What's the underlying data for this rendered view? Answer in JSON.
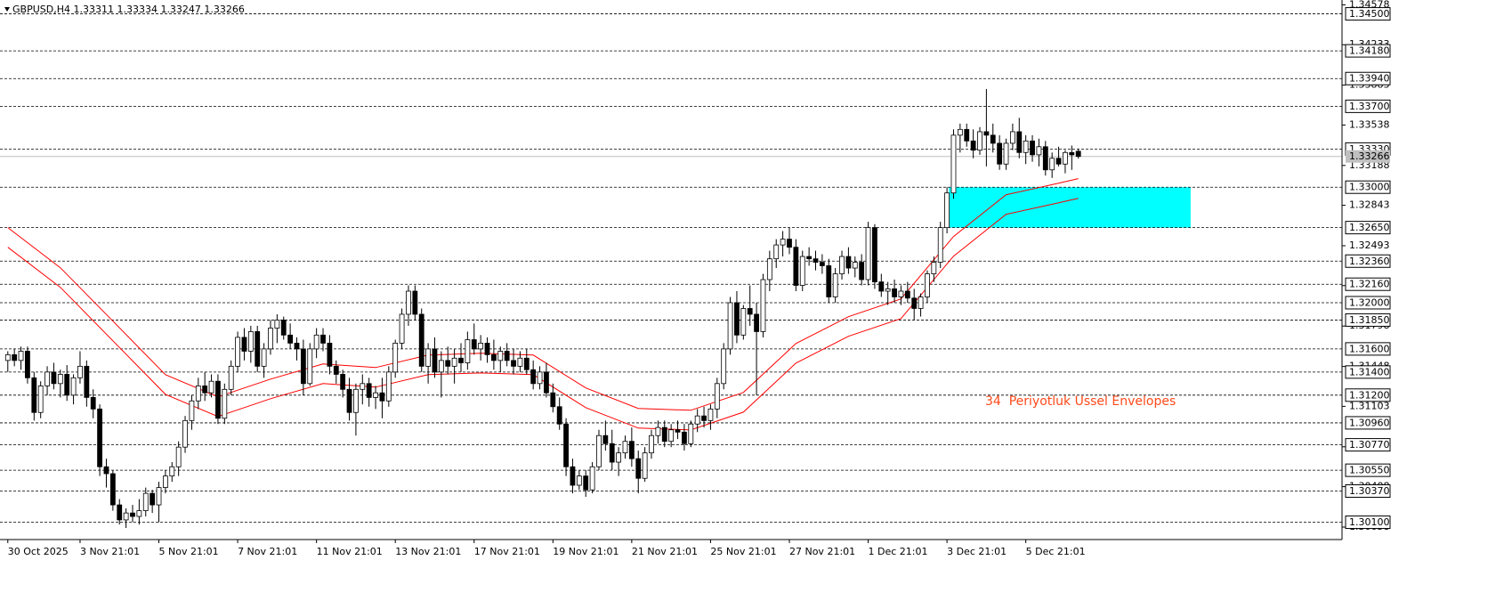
{
  "chart_data": {
    "type": "candlestick",
    "title": "GBPUSD,H4  1.33311 1.33334 1.33247 1.33266",
    "annotation": "34  Periyotluk Ussel Envelopes",
    "ylim": [
      1.2995,
      1.3462
    ],
    "xlim": [
      -1.19,
      203.15
    ],
    "yticks": [
      1.34578,
      1.34233,
      1.33883,
      1.33538,
      1.33188,
      1.32843,
      1.32493,
      1.32148,
      1.31798,
      1.31448,
      1.31103,
      1.30753,
      1.30408,
      1.30058
    ],
    "levels": [
      {
        "value": 1.345,
        "label": "1.34500"
      },
      {
        "value": 1.3418,
        "label": "1.34180"
      },
      {
        "value": 1.3394,
        "label": "1.33940"
      },
      {
        "value": 1.337,
        "label": "1.33700"
      },
      {
        "value": 1.3333,
        "label": "1.33330"
      },
      {
        "value": 1.33,
        "label": "1.33000"
      },
      {
        "value": 1.3265,
        "label": "1.32650"
      },
      {
        "value": 1.3236,
        "label": "1.32360"
      },
      {
        "value": 1.3216,
        "label": "1.32160"
      },
      {
        "value": 1.32,
        "label": "1.32000"
      },
      {
        "value": 1.3185,
        "label": "1.31850"
      },
      {
        "value": 1.316,
        "label": "1.31600"
      },
      {
        "value": 1.314,
        "label": "1.31400"
      },
      {
        "value": 1.312,
        "label": "1.31200"
      },
      {
        "value": 1.3096,
        "label": "1.30960"
      },
      {
        "value": 1.3077,
        "label": "1.30770"
      },
      {
        "value": 1.3055,
        "label": "1.30550"
      },
      {
        "value": 1.3037,
        "label": "1.30370"
      },
      {
        "value": 1.301,
        "label": "1.30100"
      }
    ],
    "current_price": 1.33266,
    "xticks": [
      {
        "value": 0,
        "label": "30 Oct 2025"
      },
      {
        "value": 11,
        "label": "3 Nov 21:01"
      },
      {
        "value": 23,
        "label": "5 Nov 21:01"
      },
      {
        "value": 35,
        "label": "7 Nov 21:01"
      },
      {
        "value": 47,
        "label": "11 Nov 21:01"
      },
      {
        "value": 59,
        "label": "13 Nov 21:01"
      },
      {
        "value": 71,
        "label": "17 Nov 21:01"
      },
      {
        "value": 83,
        "label": "19 Nov 21:01"
      },
      {
        "value": 95,
        "label": "21 Nov 21:01"
      },
      {
        "value": 107,
        "label": "25 Nov 21:01"
      },
      {
        "value": 119,
        "label": "27 Nov 21:01"
      },
      {
        "value": 131,
        "label": "1 Dec 21:01"
      },
      {
        "value": 143,
        "label": "3 Dec 21:01"
      },
      {
        "value": 155,
        "label": "5 Dec 21:01"
      }
    ],
    "zone": {
      "color": "#00ffff",
      "x": [
        143.3,
        180.1
      ],
      "y": [
        1.3265,
        1.33
      ]
    },
    "envelopes": [
      {
        "color": "#ff0000",
        "x": [
          0,
          8,
          16,
          24,
          32,
          40,
          48,
          56,
          64,
          72,
          80,
          88,
          96,
          104,
          112,
          120,
          128,
          136,
          144,
          152,
          160,
          163
        ],
        "values": [
          1.3265,
          1.32303,
          1.3184,
          1.31377,
          1.31185,
          1.31339,
          1.3147,
          1.31439,
          1.31547,
          1.31562,
          1.31547,
          1.31262,
          1.31085,
          1.31069,
          1.31223,
          1.31647,
          1.31879,
          1.32033,
          1.32573,
          1.32935,
          1.33035,
          1.33074
        ]
      },
      {
        "color": "#ff0000",
        "x": [
          0,
          8,
          16,
          24,
          32,
          40,
          48,
          56,
          64,
          72,
          80,
          88,
          96,
          104,
          112,
          120,
          128,
          136,
          144,
          152,
          160,
          163
        ],
        "values": [
          1.3248,
          1.32133,
          1.3167,
          1.31207,
          1.31015,
          1.31169,
          1.313,
          1.31269,
          1.31377,
          1.31392,
          1.31377,
          1.31092,
          1.30915,
          1.30899,
          1.31053,
          1.31477,
          1.31709,
          1.31863,
          1.32403,
          1.32765,
          1.32865,
          1.32904
        ]
      }
    ],
    "candles": [
      [
        1.315,
        1.3158,
        1.314,
        1.3155
      ],
      [
        1.3155,
        1.316,
        1.3145,
        1.315
      ],
      [
        1.315,
        1.3162,
        1.3142,
        1.3158
      ],
      [
        1.3158,
        1.3162,
        1.313,
        1.3135
      ],
      [
        1.3135,
        1.314,
        1.3098,
        1.3105
      ],
      [
        1.3105,
        1.3132,
        1.31,
        1.3128
      ],
      [
        1.3128,
        1.3145,
        1.312,
        1.314
      ],
      [
        1.314,
        1.3148,
        1.3125,
        1.313
      ],
      [
        1.313,
        1.3142,
        1.3118,
        1.3138
      ],
      [
        1.3138,
        1.3146,
        1.3115,
        1.312
      ],
      [
        1.312,
        1.3138,
        1.3112,
        1.3135
      ],
      [
        1.3135,
        1.3158,
        1.313,
        1.3145
      ],
      [
        1.3145,
        1.315,
        1.311,
        1.3118
      ],
      [
        1.3118,
        1.3125,
        1.31,
        1.3108
      ],
      [
        1.3108,
        1.3112,
        1.305,
        1.3058
      ],
      [
        1.3058,
        1.3065,
        1.304,
        1.3052
      ],
      [
        1.3052,
        1.3055,
        1.302,
        1.3025
      ],
      [
        1.3025,
        1.303,
        1.3008,
        1.3012
      ],
      [
        1.3012,
        1.3022,
        1.3005,
        1.3018
      ],
      [
        1.3018,
        1.3025,
        1.301,
        1.3015
      ],
      [
        1.3015,
        1.303,
        1.3008,
        1.302
      ],
      [
        1.302,
        1.304,
        1.3015,
        1.3035
      ],
      [
        1.3035,
        1.3038,
        1.3018,
        1.3025
      ],
      [
        1.3025,
        1.3045,
        1.301,
        1.304
      ],
      [
        1.304,
        1.3055,
        1.3035,
        1.305
      ],
      [
        1.305,
        1.3062,
        1.3045,
        1.3058
      ],
      [
        1.3058,
        1.308,
        1.305,
        1.3075
      ],
      [
        1.3075,
        1.3102,
        1.307,
        1.3098
      ],
      [
        1.3098,
        1.312,
        1.309,
        1.3115
      ],
      [
        1.3115,
        1.3135,
        1.3108,
        1.3128
      ],
      [
        1.3128,
        1.314,
        1.3115,
        1.3122
      ],
      [
        1.3122,
        1.3138,
        1.3118,
        1.3132
      ],
      [
        1.3132,
        1.3138,
        1.3095,
        1.31
      ],
      [
        1.31,
        1.313,
        1.3095,
        1.3125
      ],
      [
        1.3125,
        1.315,
        1.312,
        1.3145
      ],
      [
        1.3145,
        1.3175,
        1.314,
        1.317
      ],
      [
        1.317,
        1.3178,
        1.315,
        1.3158
      ],
      [
        1.3158,
        1.318,
        1.3148,
        1.3175
      ],
      [
        1.3175,
        1.318,
        1.314,
        1.3145
      ],
      [
        1.3145,
        1.3165,
        1.3135,
        1.316
      ],
      [
        1.316,
        1.3185,
        1.3155,
        1.3178
      ],
      [
        1.3178,
        1.319,
        1.3165,
        1.3185
      ],
      [
        1.3185,
        1.3188,
        1.3168,
        1.3172
      ],
      [
        1.3172,
        1.3182,
        1.316,
        1.3165
      ],
      [
        1.3165,
        1.317,
        1.315,
        1.316
      ],
      [
        1.316,
        1.3168,
        1.312,
        1.313
      ],
      [
        1.313,
        1.3165,
        1.3128,
        1.316
      ],
      [
        1.316,
        1.3178,
        1.3152,
        1.3172
      ],
      [
        1.3172,
        1.3178,
        1.3158,
        1.3165
      ],
      [
        1.3165,
        1.3172,
        1.3138,
        1.3145
      ],
      [
        1.3145,
        1.315,
        1.313,
        1.3138
      ],
      [
        1.3138,
        1.3142,
        1.3118,
        1.3125
      ],
      [
        1.3125,
        1.3135,
        1.3098,
        1.3105
      ],
      [
        1.3105,
        1.313,
        1.3085,
        1.3125
      ],
      [
        1.3125,
        1.3138,
        1.3112,
        1.313
      ],
      [
        1.313,
        1.3135,
        1.311,
        1.3118
      ],
      [
        1.3118,
        1.3128,
        1.3108,
        1.3122
      ],
      [
        1.3122,
        1.3135,
        1.31,
        1.3115
      ],
      [
        1.3115,
        1.3145,
        1.311,
        1.314
      ],
      [
        1.314,
        1.3168,
        1.3135,
        1.3165
      ],
      [
        1.3165,
        1.3195,
        1.316,
        1.319
      ],
      [
        1.319,
        1.3215,
        1.318,
        1.321
      ],
      [
        1.321,
        1.3215,
        1.3185,
        1.319
      ],
      [
        1.319,
        1.3195,
        1.314,
        1.3145
      ],
      [
        1.3145,
        1.3165,
        1.313,
        1.316
      ],
      [
        1.316,
        1.317,
        1.3135,
        1.314
      ],
      [
        1.314,
        1.3158,
        1.3118,
        1.315
      ],
      [
        1.315,
        1.3162,
        1.3138,
        1.3145
      ],
      [
        1.3145,
        1.316,
        1.313,
        1.3152
      ],
      [
        1.3152,
        1.3165,
        1.314,
        1.3148
      ],
      [
        1.3148,
        1.3175,
        1.3142,
        1.3168
      ],
      [
        1.3168,
        1.3182,
        1.3155,
        1.316
      ],
      [
        1.316,
        1.3172,
        1.315,
        1.3165
      ],
      [
        1.3165,
        1.317,
        1.3148,
        1.3155
      ],
      [
        1.3155,
        1.3168,
        1.3142,
        1.315
      ],
      [
        1.315,
        1.3162,
        1.314,
        1.3158
      ],
      [
        1.3158,
        1.3165,
        1.3145,
        1.315
      ],
      [
        1.315,
        1.316,
        1.3138,
        1.3145
      ],
      [
        1.3145,
        1.3158,
        1.314,
        1.3152
      ],
      [
        1.3152,
        1.316,
        1.3138,
        1.3142
      ],
      [
        1.3142,
        1.315,
        1.3125,
        1.313
      ],
      [
        1.313,
        1.3145,
        1.3125,
        1.314
      ],
      [
        1.314,
        1.3148,
        1.3118,
        1.3122
      ],
      [
        1.3122,
        1.313,
        1.3105,
        1.311
      ],
      [
        1.311,
        1.3118,
        1.309,
        1.3095
      ],
      [
        1.3095,
        1.31,
        1.305,
        1.3058
      ],
      [
        1.3058,
        1.3065,
        1.3035,
        1.3042
      ],
      [
        1.3042,
        1.3055,
        1.3038,
        1.305
      ],
      [
        1.305,
        1.3055,
        1.3032,
        1.3038
      ],
      [
        1.3038,
        1.3062,
        1.3035,
        1.3058
      ],
      [
        1.3058,
        1.309,
        1.3055,
        1.3085
      ],
      [
        1.3085,
        1.3098,
        1.3072,
        1.3078
      ],
      [
        1.3078,
        1.309,
        1.3055,
        1.3062
      ],
      [
        1.3062,
        1.3075,
        1.305,
        1.307
      ],
      [
        1.307,
        1.3085,
        1.3065,
        1.308
      ],
      [
        1.308,
        1.3092,
        1.3058,
        1.3065
      ],
      [
        1.3065,
        1.3072,
        1.3035,
        1.3048
      ],
      [
        1.3048,
        1.3075,
        1.3045,
        1.307
      ],
      [
        1.307,
        1.309,
        1.3065,
        1.3085
      ],
      [
        1.3085,
        1.3098,
        1.3078,
        1.3092
      ],
      [
        1.3092,
        1.3098,
        1.3075,
        1.308
      ],
      [
        1.308,
        1.3095,
        1.3075,
        1.309
      ],
      [
        1.309,
        1.3098,
        1.3082,
        1.3088
      ],
      [
        1.3088,
        1.3095,
        1.3072,
        1.3078
      ],
      [
        1.3078,
        1.3098,
        1.3075,
        1.3095
      ],
      [
        1.3095,
        1.3108,
        1.3088,
        1.3102
      ],
      [
        1.3102,
        1.311,
        1.3092,
        1.3098
      ],
      [
        1.3098,
        1.3112,
        1.309,
        1.3108
      ],
      [
        1.3108,
        1.3135,
        1.31,
        1.313
      ],
      [
        1.313,
        1.3165,
        1.3125,
        1.316
      ],
      [
        1.316,
        1.3205,
        1.3155,
        1.32
      ],
      [
        1.32,
        1.321,
        1.3165,
        1.3172
      ],
      [
        1.3172,
        1.3198,
        1.3168,
        1.3195
      ],
      [
        1.3195,
        1.3215,
        1.318,
        1.319
      ],
      [
        1.319,
        1.32,
        1.312,
        1.3175
      ],
      [
        1.3175,
        1.3225,
        1.317,
        1.322
      ],
      [
        1.322,
        1.3245,
        1.321,
        1.3238
      ],
      [
        1.3238,
        1.3255,
        1.323,
        1.325
      ],
      [
        1.325,
        1.3262,
        1.324,
        1.3255
      ],
      [
        1.3255,
        1.3265,
        1.3242,
        1.3248
      ],
      [
        1.3248,
        1.3255,
        1.321,
        1.3215
      ],
      [
        1.3215,
        1.3245,
        1.321,
        1.324
      ],
      [
        1.324,
        1.3248,
        1.3232,
        1.3238
      ],
      [
        1.3238,
        1.3245,
        1.3228,
        1.3235
      ],
      [
        1.3235,
        1.3242,
        1.3225,
        1.3232
      ],
      [
        1.3232,
        1.3238,
        1.32,
        1.3205
      ],
      [
        1.3205,
        1.323,
        1.32,
        1.3225
      ],
      [
        1.3225,
        1.3245,
        1.322,
        1.324
      ],
      [
        1.324,
        1.3248,
        1.3225,
        1.323
      ],
      [
        1.323,
        1.324,
        1.3222,
        1.3235
      ],
      [
        1.3235,
        1.3242,
        1.3215,
        1.322
      ],
      [
        1.322,
        1.327,
        1.3215,
        1.3265
      ],
      [
        1.3265,
        1.3268,
        1.3212,
        1.3218
      ],
      [
        1.3218,
        1.3225,
        1.3205,
        1.321
      ],
      [
        1.321,
        1.3218,
        1.3198,
        1.3212
      ],
      [
        1.3212,
        1.322,
        1.32,
        1.3205
      ],
      [
        1.3205,
        1.3215,
        1.3198,
        1.321
      ],
      [
        1.321,
        1.3218,
        1.32,
        1.3204
      ],
      [
        1.3204,
        1.3212,
        1.3185,
        1.3195
      ],
      [
        1.3195,
        1.3208,
        1.3188,
        1.3205
      ],
      [
        1.3205,
        1.3228,
        1.32,
        1.3225
      ],
      [
        1.3225,
        1.324,
        1.3218,
        1.3235
      ],
      [
        1.3235,
        1.327,
        1.323,
        1.3265
      ],
      [
        1.3265,
        1.33,
        1.326,
        1.3295
      ],
      [
        1.3295,
        1.335,
        1.329,
        1.3345
      ],
      [
        1.3345,
        1.3355,
        1.333,
        1.335
      ],
      [
        1.335,
        1.3355,
        1.3335,
        1.334
      ],
      [
        1.334,
        1.335,
        1.3325,
        1.3332
      ],
      [
        1.3332,
        1.3352,
        1.3328,
        1.3348
      ],
      [
        1.3348,
        1.3385,
        1.3318,
        1.3345
      ],
      [
        1.3345,
        1.3355,
        1.333,
        1.3338
      ],
      [
        1.3338,
        1.3345,
        1.3315,
        1.332
      ],
      [
        1.332,
        1.3342,
        1.3315,
        1.3338
      ],
      [
        1.3338,
        1.3355,
        1.3332,
        1.3348
      ],
      [
        1.3348,
        1.336,
        1.3325,
        1.333
      ],
      [
        1.333,
        1.3345,
        1.332,
        1.334
      ],
      [
        1.334,
        1.3345,
        1.3322,
        1.3328
      ],
      [
        1.3328,
        1.3342,
        1.3318,
        1.3335
      ],
      [
        1.3335,
        1.334,
        1.331,
        1.3315
      ],
      [
        1.3315,
        1.333,
        1.3308,
        1.3325
      ],
      [
        1.3325,
        1.3335,
        1.3318,
        1.332
      ],
      [
        1.332,
        1.3332,
        1.3312,
        1.333
      ],
      [
        1.333,
        1.3336,
        1.3315,
        1.3328
      ],
      [
        1.33311,
        1.33334,
        1.33247,
        1.33266
      ]
    ]
  }
}
